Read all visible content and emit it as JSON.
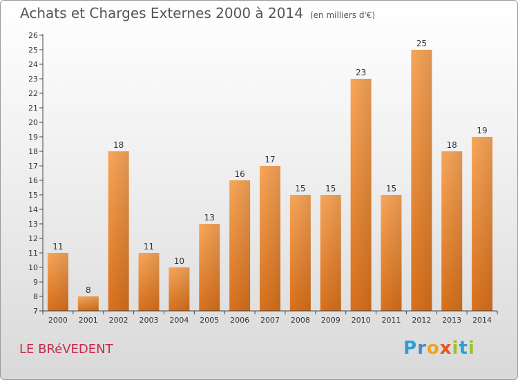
{
  "title": "Achats et Charges Externes 2000 à 2014",
  "unit": "(en milliers d'€)",
  "place": "LE BRéVEDENT",
  "brand": {
    "letters": [
      "P",
      "r",
      "o",
      "x",
      "i",
      "t",
      "i"
    ],
    "colors": [
      "#2a9fd8",
      "#3a8fd0",
      "#f2a21b",
      "#e8531d",
      "#9cc12b",
      "#2a9fd8",
      "#9cc12b"
    ]
  },
  "colors": {
    "bar_light": "#f8a65a",
    "bar_dark": "#d8711d",
    "axis": "#444444",
    "grid": "#d0d0d0"
  },
  "chart_data": {
    "type": "bar",
    "title": "Achats et Charges Externes 2000 à 2014",
    "subtitle": "(en milliers d'€)",
    "categories": [
      "2000",
      "2001",
      "2002",
      "2003",
      "2004",
      "2005",
      "2006",
      "2007",
      "2008",
      "2009",
      "2010",
      "2011",
      "2012",
      "2013",
      "2014"
    ],
    "values": [
      11,
      8,
      18,
      11,
      10,
      13,
      16,
      17,
      15,
      15,
      23,
      15,
      25,
      18,
      19
    ],
    "ylim": [
      7,
      26
    ],
    "yticks": [
      7,
      8,
      9,
      10,
      11,
      12,
      13,
      14,
      15,
      16,
      17,
      18,
      19,
      20,
      21,
      22,
      23,
      24,
      25,
      26
    ],
    "data_labels": true,
    "grid": false,
    "legend": "none"
  }
}
